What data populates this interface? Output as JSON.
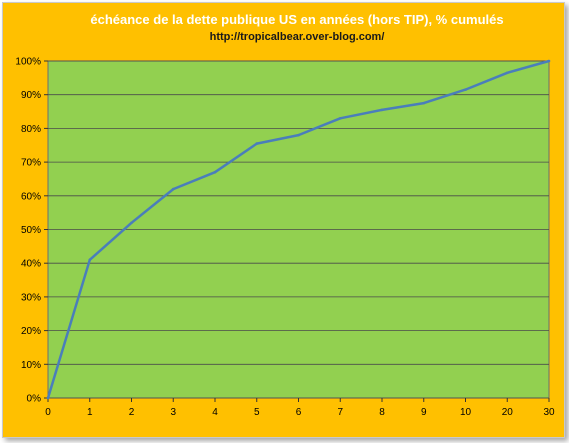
{
  "chart_data": {
    "type": "line",
    "title": "échéance de la dette publique US en années  (hors TIP),  % cumulés",
    "subtitle": "http://tropicalbear.over-blog.com/",
    "categories": [
      "0",
      "1",
      "2",
      "3",
      "4",
      "5",
      "6",
      "7",
      "8",
      "9",
      "10",
      "20",
      "30"
    ],
    "series": [
      {
        "values": [
          0,
          41,
          52,
          62,
          67,
          75.5,
          78,
          83,
          85.5,
          87.5,
          91.5,
          96.5,
          100
        ]
      }
    ],
    "y_ticks": [
      "0%",
      "10%",
      "20%",
      "30%",
      "40%",
      "50%",
      "60%",
      "70%",
      "80%",
      "90%",
      "100%"
    ],
    "ylim": [
      0,
      100
    ],
    "grid": true,
    "legend": "none",
    "colors": {
      "background": "#FFC000",
      "plot_area": "#92D050",
      "line": "#4A7EBB",
      "gridline": "#4a4a4a",
      "title": "#ffffff"
    }
  }
}
